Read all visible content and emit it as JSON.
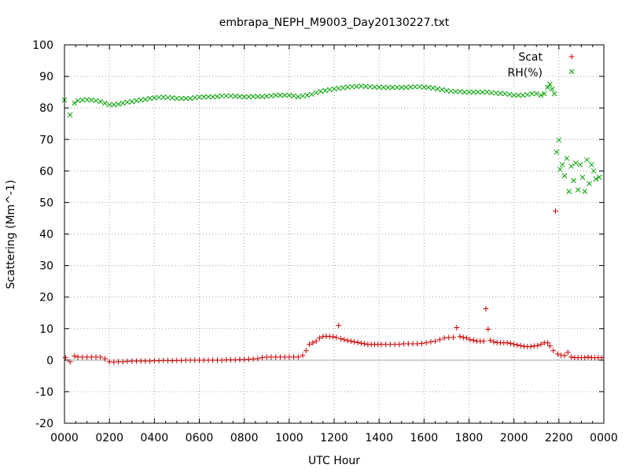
{
  "chart_data": {
    "type": "scatter",
    "title": "embrapa_NEPH_M9003_Day20130227.txt",
    "xlabel": "UTC Hour",
    "ylabel": "Scattering (Mm^-1)",
    "xlim": [
      0,
      24
    ],
    "ylim": [
      -20,
      100
    ],
    "x_ticks": [
      {
        "x": 0,
        "label": "0000"
      },
      {
        "x": 2,
        "label": "0200"
      },
      {
        "x": 4,
        "label": "0400"
      },
      {
        "x": 6,
        "label": "0600"
      },
      {
        "x": 8,
        "label": "0800"
      },
      {
        "x": 10,
        "label": "1000"
      },
      {
        "x": 12,
        "label": "1200"
      },
      {
        "x": 14,
        "label": "1400"
      },
      {
        "x": 16,
        "label": "1600"
      },
      {
        "x": 18,
        "label": "1800"
      },
      {
        "x": 20,
        "label": "2000"
      },
      {
        "x": 22,
        "label": "2200"
      },
      {
        "x": 24,
        "label": "0000"
      }
    ],
    "y_ticks": [
      -20,
      -10,
      0,
      10,
      20,
      30,
      40,
      50,
      60,
      70,
      80,
      90,
      100
    ],
    "x_minor_step": 0.5,
    "grid": true,
    "legend_position": "top-right",
    "series": [
      {
        "name": "Scat",
        "marker": "plus",
        "color": "#cc0000",
        "points": [
          [
            0.05,
            0.8
          ],
          [
            0.25,
            -0.5
          ],
          [
            0.45,
            1.3
          ],
          [
            0.6,
            1.0
          ],
          [
            0.8,
            1.0
          ],
          [
            1.0,
            1.0
          ],
          [
            1.2,
            1.0
          ],
          [
            1.4,
            1.0
          ],
          [
            1.6,
            1.0
          ],
          [
            1.8,
            0.5
          ],
          [
            2.0,
            -0.5
          ],
          [
            2.2,
            -0.6
          ],
          [
            2.4,
            -0.5
          ],
          [
            2.6,
            -0.5
          ],
          [
            2.8,
            -0.4
          ],
          [
            3.0,
            -0.3
          ],
          [
            3.2,
            -0.3
          ],
          [
            3.4,
            -0.3
          ],
          [
            3.6,
            -0.3
          ],
          [
            3.8,
            -0.3
          ],
          [
            4.0,
            -0.2
          ],
          [
            4.2,
            -0.2
          ],
          [
            4.4,
            -0.1
          ],
          [
            4.6,
            -0.1
          ],
          [
            4.8,
            -0.2
          ],
          [
            5.0,
            -0.1
          ],
          [
            5.2,
            -0.1
          ],
          [
            5.4,
            0.0
          ],
          [
            5.6,
            0.0
          ],
          [
            5.8,
            0.0
          ],
          [
            6.0,
            0.0
          ],
          [
            6.2,
            0.0
          ],
          [
            6.4,
            0.0
          ],
          [
            6.6,
            0.0
          ],
          [
            6.8,
            0.0
          ],
          [
            7.0,
            0.0
          ],
          [
            7.2,
            0.1
          ],
          [
            7.4,
            0.1
          ],
          [
            7.6,
            0.1
          ],
          [
            7.8,
            0.2
          ],
          [
            8.0,
            0.2
          ],
          [
            8.2,
            0.3
          ],
          [
            8.4,
            0.4
          ],
          [
            8.6,
            0.5
          ],
          [
            8.8,
            0.8
          ],
          [
            9.0,
            1.0
          ],
          [
            9.2,
            1.0
          ],
          [
            9.4,
            1.0
          ],
          [
            9.6,
            1.0
          ],
          [
            9.8,
            1.0
          ],
          [
            10.0,
            1.0
          ],
          [
            10.2,
            1.0
          ],
          [
            10.4,
            1.0
          ],
          [
            10.6,
            1.5
          ],
          [
            10.75,
            3.0
          ],
          [
            10.9,
            5.0
          ],
          [
            11.05,
            5.5
          ],
          [
            11.2,
            6.0
          ],
          [
            11.35,
            7.0
          ],
          [
            11.5,
            7.5
          ],
          [
            11.65,
            7.6
          ],
          [
            11.8,
            7.5
          ],
          [
            11.95,
            7.4
          ],
          [
            12.1,
            7.2
          ],
          [
            12.2,
            11.0
          ],
          [
            12.3,
            6.8
          ],
          [
            12.45,
            6.5
          ],
          [
            12.6,
            6.2
          ],
          [
            12.75,
            6.0
          ],
          [
            12.9,
            5.8
          ],
          [
            13.05,
            5.6
          ],
          [
            13.2,
            5.4
          ],
          [
            13.35,
            5.2
          ],
          [
            13.5,
            5.0
          ],
          [
            13.65,
            5.0
          ],
          [
            13.8,
            5.0
          ],
          [
            13.95,
            5.0
          ],
          [
            14.1,
            5.0
          ],
          [
            14.3,
            5.0
          ],
          [
            14.5,
            5.0
          ],
          [
            14.7,
            5.0
          ],
          [
            14.9,
            5.0
          ],
          [
            15.1,
            5.2
          ],
          [
            15.3,
            5.2
          ],
          [
            15.5,
            5.2
          ],
          [
            15.7,
            5.2
          ],
          [
            15.9,
            5.3
          ],
          [
            16.1,
            5.5
          ],
          [
            16.3,
            5.8
          ],
          [
            16.5,
            6.0
          ],
          [
            16.7,
            6.5
          ],
          [
            16.9,
            7.0
          ],
          [
            17.1,
            7.2
          ],
          [
            17.3,
            7.2
          ],
          [
            17.45,
            10.3
          ],
          [
            17.6,
            7.5
          ],
          [
            17.75,
            7.2
          ],
          [
            17.9,
            7.0
          ],
          [
            18.05,
            6.5
          ],
          [
            18.2,
            6.3
          ],
          [
            18.35,
            6.0
          ],
          [
            18.5,
            6.0
          ],
          [
            18.65,
            6.0
          ],
          [
            18.75,
            16.3
          ],
          [
            18.85,
            9.8
          ],
          [
            18.95,
            6.3
          ],
          [
            19.1,
            5.8
          ],
          [
            19.25,
            5.6
          ],
          [
            19.4,
            5.5
          ],
          [
            19.55,
            5.5
          ],
          [
            19.7,
            5.5
          ],
          [
            19.85,
            5.3
          ],
          [
            20.0,
            5.0
          ],
          [
            20.15,
            4.8
          ],
          [
            20.3,
            4.6
          ],
          [
            20.45,
            4.4
          ],
          [
            20.6,
            4.3
          ],
          [
            20.75,
            4.3
          ],
          [
            20.9,
            4.5
          ],
          [
            21.05,
            4.6
          ],
          [
            21.2,
            5.0
          ],
          [
            21.35,
            5.5
          ],
          [
            21.5,
            5.5
          ],
          [
            21.6,
            4.5
          ],
          [
            21.75,
            3.0
          ],
          [
            21.85,
            47.3
          ],
          [
            21.95,
            2.0
          ],
          [
            22.1,
            1.5
          ],
          [
            22.25,
            1.5
          ],
          [
            22.4,
            2.5
          ],
          [
            22.55,
            1.0
          ],
          [
            22.7,
            0.8
          ],
          [
            22.85,
            0.8
          ],
          [
            23.0,
            0.8
          ],
          [
            23.15,
            0.8
          ],
          [
            23.3,
            1.0
          ],
          [
            23.45,
            0.8
          ],
          [
            23.6,
            0.8
          ],
          [
            23.75,
            0.8
          ],
          [
            23.9,
            0.8
          ]
        ]
      },
      {
        "name": "RH(%)",
        "marker": "cross",
        "color": "#00a000",
        "points": [
          [
            0.0,
            82.5
          ],
          [
            0.25,
            77.8
          ],
          [
            0.45,
            81.5
          ],
          [
            0.6,
            82.3
          ],
          [
            0.8,
            82.5
          ],
          [
            1.0,
            82.6
          ],
          [
            1.2,
            82.5
          ],
          [
            1.4,
            82.3
          ],
          [
            1.6,
            82.0
          ],
          [
            1.8,
            81.5
          ],
          [
            2.0,
            81.0
          ],
          [
            2.2,
            81.0
          ],
          [
            2.4,
            81.2
          ],
          [
            2.6,
            81.5
          ],
          [
            2.8,
            81.8
          ],
          [
            3.0,
            82.0
          ],
          [
            3.2,
            82.3
          ],
          [
            3.4,
            82.5
          ],
          [
            3.6,
            82.7
          ],
          [
            3.8,
            83.0
          ],
          [
            4.0,
            83.2
          ],
          [
            4.2,
            83.3
          ],
          [
            4.4,
            83.4
          ],
          [
            4.6,
            83.3
          ],
          [
            4.8,
            83.2
          ],
          [
            5.0,
            83.0
          ],
          [
            5.2,
            83.0
          ],
          [
            5.4,
            83.0
          ],
          [
            5.6,
            83.0
          ],
          [
            5.8,
            83.3
          ],
          [
            6.0,
            83.4
          ],
          [
            6.2,
            83.5
          ],
          [
            6.4,
            83.5
          ],
          [
            6.6,
            83.5
          ],
          [
            6.8,
            83.6
          ],
          [
            7.0,
            83.8
          ],
          [
            7.2,
            83.8
          ],
          [
            7.4,
            83.8
          ],
          [
            7.6,
            83.7
          ],
          [
            7.8,
            83.6
          ],
          [
            8.0,
            83.5
          ],
          [
            8.2,
            83.5
          ],
          [
            8.4,
            83.6
          ],
          [
            8.6,
            83.6
          ],
          [
            8.8,
            83.6
          ],
          [
            9.0,
            83.7
          ],
          [
            9.2,
            83.8
          ],
          [
            9.4,
            84.0
          ],
          [
            9.6,
            84.0
          ],
          [
            9.8,
            84.0
          ],
          [
            10.0,
            84.0
          ],
          [
            10.2,
            83.8
          ],
          [
            10.4,
            83.5
          ],
          [
            10.6,
            83.8
          ],
          [
            10.8,
            84.0
          ],
          [
            11.0,
            84.3
          ],
          [
            11.2,
            84.8
          ],
          [
            11.4,
            85.2
          ],
          [
            11.6,
            85.5
          ],
          [
            11.8,
            85.8
          ],
          [
            12.0,
            86.0
          ],
          [
            12.2,
            86.2
          ],
          [
            12.4,
            86.4
          ],
          [
            12.6,
            86.6
          ],
          [
            12.8,
            86.7
          ],
          [
            13.0,
            86.8
          ],
          [
            13.2,
            86.9
          ],
          [
            13.4,
            86.8
          ],
          [
            13.6,
            86.7
          ],
          [
            13.8,
            86.6
          ],
          [
            14.0,
            86.6
          ],
          [
            14.2,
            86.5
          ],
          [
            14.4,
            86.5
          ],
          [
            14.6,
            86.5
          ],
          [
            14.8,
            86.5
          ],
          [
            15.0,
            86.5
          ],
          [
            15.2,
            86.5
          ],
          [
            15.4,
            86.6
          ],
          [
            15.6,
            86.7
          ],
          [
            15.8,
            86.7
          ],
          [
            16.0,
            86.6
          ],
          [
            16.2,
            86.5
          ],
          [
            16.4,
            86.3
          ],
          [
            16.6,
            86.0
          ],
          [
            16.8,
            85.8
          ],
          [
            17.0,
            85.5
          ],
          [
            17.2,
            85.3
          ],
          [
            17.4,
            85.2
          ],
          [
            17.6,
            85.2
          ],
          [
            17.8,
            85.0
          ],
          [
            18.0,
            85.0
          ],
          [
            18.2,
            85.0
          ],
          [
            18.4,
            85.0
          ],
          [
            18.6,
            85.0
          ],
          [
            18.8,
            85.0
          ],
          [
            19.0,
            84.8
          ],
          [
            19.2,
            84.7
          ],
          [
            19.4,
            84.6
          ],
          [
            19.6,
            84.5
          ],
          [
            19.8,
            84.3
          ],
          [
            20.0,
            84.0
          ],
          [
            20.2,
            84.0
          ],
          [
            20.4,
            84.0
          ],
          [
            20.6,
            84.2
          ],
          [
            20.8,
            84.5
          ],
          [
            21.0,
            84.5
          ],
          [
            21.2,
            84.0
          ],
          [
            21.35,
            84.5
          ],
          [
            21.5,
            86.5
          ],
          [
            21.6,
            87.5
          ],
          [
            21.7,
            86.0
          ],
          [
            21.8,
            84.5
          ],
          [
            21.9,
            66.0
          ],
          [
            22.0,
            69.8
          ],
          [
            22.05,
            60.5
          ],
          [
            22.15,
            62.0
          ],
          [
            22.25,
            58.5
          ],
          [
            22.35,
            64.0
          ],
          [
            22.45,
            53.5
          ],
          [
            22.55,
            61.5
          ],
          [
            22.65,
            57.0
          ],
          [
            22.75,
            62.5
          ],
          [
            22.85,
            54.0
          ],
          [
            22.95,
            62.0
          ],
          [
            23.05,
            58.0
          ],
          [
            23.15,
            53.5
          ],
          [
            23.25,
            63.5
          ],
          [
            23.35,
            56.0
          ],
          [
            23.45,
            62.0
          ],
          [
            23.55,
            60.0
          ],
          [
            23.65,
            57.5
          ],
          [
            23.8,
            58.0
          ]
        ]
      }
    ]
  }
}
